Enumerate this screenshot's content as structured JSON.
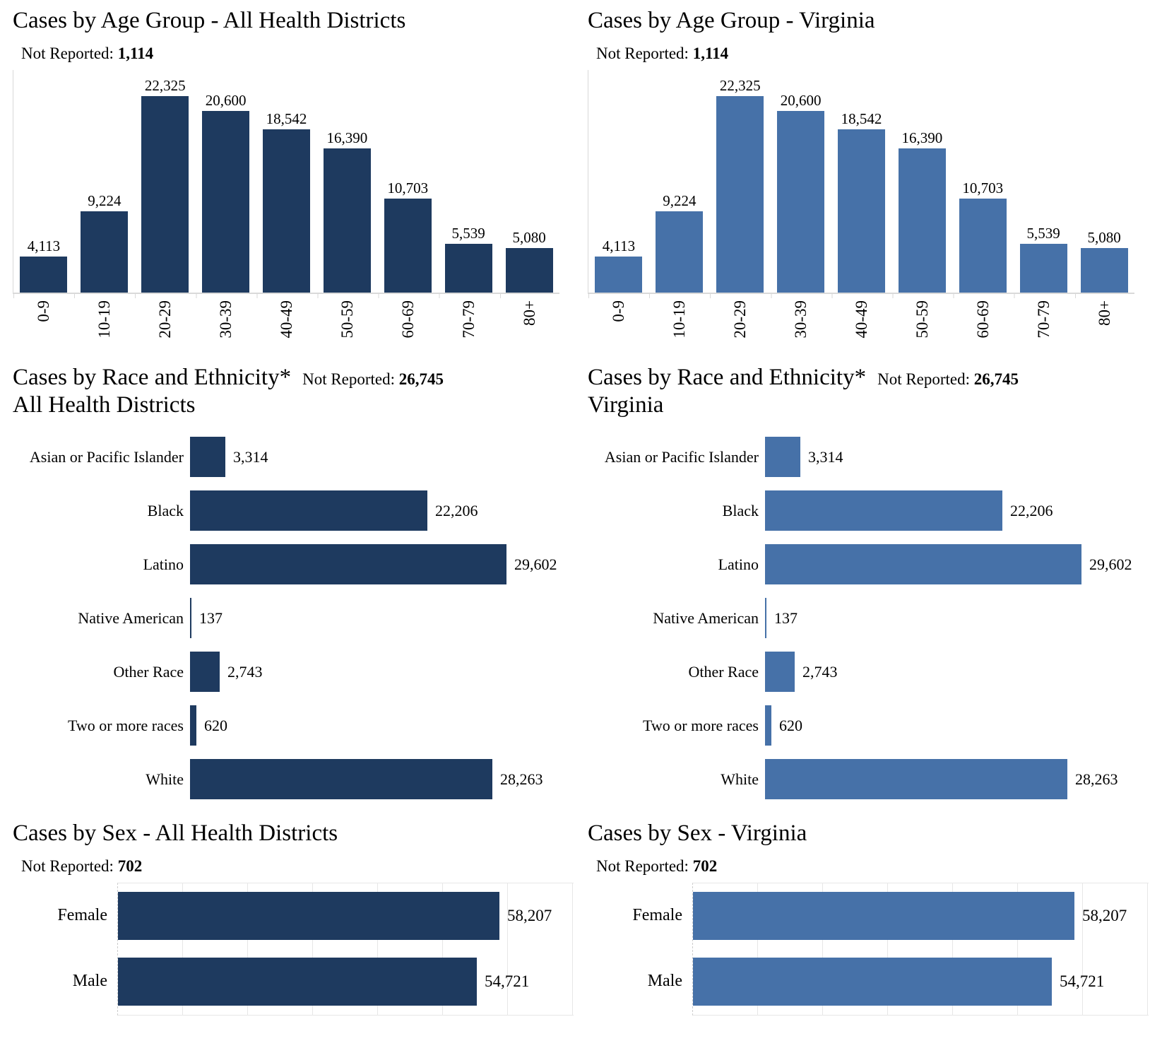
{
  "labels": {
    "not_reported": "Not Reported:"
  },
  "colors": {
    "dark": "#1e3a5f",
    "light": "#4671a8",
    "axis": "#d9d9d9",
    "grid": "#e7e7e7",
    "text": "#000000"
  },
  "chart_data": [
    {
      "id": "age-all-districts",
      "type": "bar",
      "title": "Cases by Age Group - All Health Districts",
      "not_reported": "1,114",
      "categories": [
        "0-9",
        "10-19",
        "20-29",
        "30-39",
        "40-49",
        "50-59",
        "60-69",
        "70-79",
        "80+"
      ],
      "values": [
        4113,
        9224,
        22325,
        20600,
        18542,
        16390,
        10703,
        5539,
        5080
      ],
      "value_labels": [
        "4,113",
        "9,224",
        "22,325",
        "20,600",
        "18,542",
        "16,390",
        "10,703",
        "5,539",
        "5,080"
      ],
      "color": "dark",
      "ylim": [
        0,
        22325
      ],
      "grid": false,
      "legend": "none",
      "xlabel": "",
      "ylabel": ""
    },
    {
      "id": "age-virginia",
      "type": "bar",
      "title": "Cases by Age Group - Virginia",
      "not_reported": "1,114",
      "categories": [
        "0-9",
        "10-19",
        "20-29",
        "30-39",
        "40-49",
        "50-59",
        "60-69",
        "70-79",
        "80+"
      ],
      "values": [
        4113,
        9224,
        22325,
        20600,
        18542,
        16390,
        10703,
        5539,
        5080
      ],
      "value_labels": [
        "4,113",
        "9,224",
        "22,325",
        "20,600",
        "18,542",
        "16,390",
        "10,703",
        "5,539",
        "5,080"
      ],
      "color": "light",
      "ylim": [
        0,
        22325
      ],
      "grid": false,
      "legend": "none",
      "xlabel": "",
      "ylabel": ""
    },
    {
      "id": "race-all-districts",
      "type": "bar-horizontal",
      "title_line1": "Cases by Race and Ethnicity*",
      "title_line2": "All Health Districts",
      "not_reported": "26,745",
      "categories": [
        "Asian or Pacific Islander",
        "Black",
        "Latino",
        "Native American",
        "Other Race",
        "Two or more races",
        "White"
      ],
      "values": [
        3314,
        22206,
        29602,
        137,
        2743,
        620,
        28263
      ],
      "value_labels": [
        "3,314",
        "22,206",
        "29,602",
        "137",
        "2,743",
        "620",
        "28,263"
      ],
      "color": "dark",
      "xlim": [
        0,
        29602
      ],
      "grid": false,
      "legend": "none",
      "xlabel": "",
      "ylabel": ""
    },
    {
      "id": "race-virginia",
      "type": "bar-horizontal",
      "title_line1": "Cases by Race and Ethnicity*",
      "title_line2": "Virginia",
      "not_reported": "26,745",
      "categories": [
        "Asian or Pacific Islander",
        "Black",
        "Latino",
        "Native American",
        "Other Race",
        "Two or more races",
        "White"
      ],
      "values": [
        3314,
        22206,
        29602,
        137,
        2743,
        620,
        28263
      ],
      "value_labels": [
        "3,314",
        "22,206",
        "29,602",
        "137",
        "2,743",
        "620",
        "28,263"
      ],
      "color": "light",
      "xlim": [
        0,
        29602
      ],
      "grid": false,
      "legend": "none",
      "xlabel": "",
      "ylabel": ""
    },
    {
      "id": "sex-all-districts",
      "type": "bar-horizontal",
      "title": "Cases by Sex - All Health Districts",
      "not_reported": "702",
      "categories": [
        "Female",
        "Male"
      ],
      "values": [
        58207,
        54721
      ],
      "value_labels": [
        "58,207",
        "54,721"
      ],
      "color": "dark",
      "xlim": [
        0,
        69500
      ],
      "grid": true,
      "grid_interval": 10000,
      "legend": "none",
      "xlabel": "",
      "ylabel": ""
    },
    {
      "id": "sex-virginia",
      "type": "bar-horizontal",
      "title": "Cases by Sex - Virginia",
      "not_reported": "702",
      "categories": [
        "Female",
        "Male"
      ],
      "values": [
        58207,
        54721
      ],
      "value_labels": [
        "58,207",
        "54,721"
      ],
      "color": "light",
      "xlim": [
        0,
        69500
      ],
      "grid": true,
      "grid_interval": 10000,
      "legend": "none",
      "xlabel": "",
      "ylabel": ""
    }
  ]
}
